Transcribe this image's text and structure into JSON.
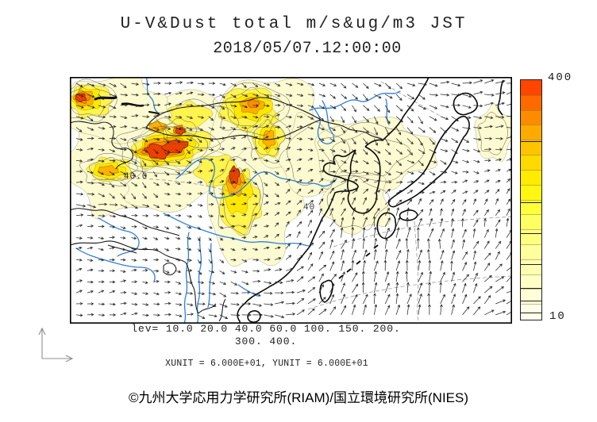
{
  "title": {
    "line1": "U-V&Dust total m/s&ug/m3 JST",
    "line2": "2018/05/07.12:00:00"
  },
  "legend": {
    "lev_line1": "lev= 10.0 20.0 40.0 60.0 100. 150. 200.",
    "lev_line2": "300. 400.",
    "units_line": "XUNIT = 6.000E+01, YUNIT = 6.000E+01"
  },
  "colorbar": {
    "max_label": "400",
    "min_label": "10",
    "colors_bottom_to_top": [
      "#FFFFE8",
      "#FFFFD8",
      "#FFFFC6",
      "#FFFFB2",
      "#FFFF9C",
      "#FFFF82",
      "#FFFF62",
      "#FFFF3C",
      "#FFF712",
      "#FFEA00",
      "#FFD900",
      "#FFC400",
      "#FFAA00",
      "#FF8C00",
      "#FF6A00",
      "#FF4500"
    ]
  },
  "footer": {
    "credit": "©九州大学応用力学研究所(RIAM)/国立環境研究所(NIES)"
  },
  "chart_data": {
    "type": "heatmap",
    "subtype": "filled-contour map with wind vectors",
    "title": "U-V&Dust total m/s&ug/m3 JST",
    "valid_time": "2018/05/07.12:00:00",
    "timezone": "JST",
    "variables": [
      "U-V wind vectors (m/s)",
      "Dust total concentration (ug/m3)"
    ],
    "contour_levels": [
      10,
      20,
      40,
      60,
      100,
      150,
      200,
      300,
      400
    ],
    "colorbar_range": [
      10,
      400
    ],
    "colorbar_orientation": "vertical-right",
    "vector_scale": {
      "xunit": "6.000E+01",
      "yunit": "6.000E+01"
    },
    "contour_labels": [
      "40.0",
      "40"
    ],
    "depicted_features": [
      "dust maximum >=300 ug/m3 over Tarim/Taklamakan basin (northwest corner)",
      "dust maximum >=300 ug/m3 over Gobi / Inner Mongolia belt",
      "dust plume >=300 ug/m3 extending south over Loess Plateau",
      "light dust 10-20 ug/m3 over Korea, Sea of Japan and east of Japan",
      "southerly winds over East China Sea and western Pacific",
      "westerly flow across northern China"
    ]
  }
}
